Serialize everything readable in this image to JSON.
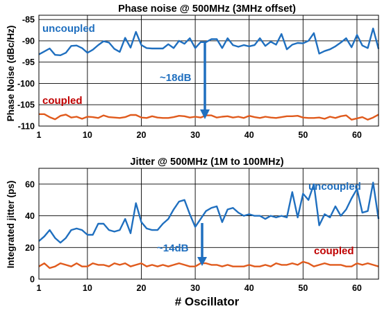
{
  "chart_data": [
    {
      "type": "line",
      "title": "Phase noise @ 500MHz (3MHz offset)",
      "xlabel": "",
      "ylabel": "Phase Noise (dBc/Hz)",
      "xlim": [
        1,
        64
      ],
      "ylim": [
        -110,
        -84
      ],
      "x_ticks": [
        1,
        10,
        20,
        30,
        40,
        50,
        60
      ],
      "y_ticks": [
        -110,
        -105,
        -100,
        -95,
        -90,
        -85
      ],
      "x_tick_labels": [
        "1",
        "10",
        "20",
        "30",
        "40",
        "50",
        "60"
      ],
      "y_tick_labels": [
        "-110",
        "-105",
        "-100",
        "-95",
        "-90",
        "-85"
      ],
      "grid": true,
      "x": [
        1,
        2,
        3,
        4,
        5,
        6,
        7,
        8,
        9,
        10,
        11,
        12,
        13,
        14,
        15,
        16,
        17,
        18,
        19,
        20,
        21,
        22,
        23,
        24,
        25,
        26,
        27,
        28,
        29,
        30,
        31,
        32,
        33,
        34,
        35,
        36,
        37,
        38,
        39,
        40,
        41,
        42,
        43,
        44,
        45,
        46,
        47,
        48,
        49,
        50,
        51,
        52,
        53,
        54,
        55,
        56,
        57,
        58,
        59,
        60,
        61,
        62,
        63,
        64
      ],
      "series": [
        {
          "name": "uncoupled",
          "color": "#1f6fbf",
          "values": [
            -93.2,
            -92.5,
            -91.8,
            -93.3,
            -93.4,
            -92.8,
            -91.2,
            -91.1,
            -91.7,
            -92.8,
            -92.1,
            -91.0,
            -90.1,
            -90.4,
            -91.9,
            -92.6,
            -89.3,
            -91.6,
            -87.9,
            -91.0,
            -91.7,
            -91.8,
            -91.8,
            -91.8,
            -90.8,
            -91.7,
            -90.0,
            -90.7,
            -89.4,
            -91.7,
            -90.3,
            -90.3,
            -89.6,
            -89.6,
            -91.7,
            -89.4,
            -91.0,
            -91.4,
            -91.0,
            -91.3,
            -91.0,
            -89.4,
            -91.2,
            -90.2,
            -90.9,
            -88.4,
            -92.0,
            -90.9,
            -90.5,
            -90.6,
            -90.0,
            -88.2,
            -93.0,
            -92.4,
            -92.0,
            -91.3,
            -90.4,
            -89.4,
            -91.5,
            -88.6,
            -91.1,
            -91.7,
            -87.1,
            -91.9
          ]
        },
        {
          "name": "coupled",
          "color": "#e05a1c",
          "values": [
            -107.2,
            -107.2,
            -107.9,
            -108.4,
            -107.6,
            -107.3,
            -108.0,
            -107.8,
            -108.3,
            -107.8,
            -107.9,
            -108.1,
            -107.5,
            -107.9,
            -108.0,
            -108.1,
            -107.9,
            -107.4,
            -107.4,
            -108.0,
            -108.1,
            -107.7,
            -108.0,
            -108.1,
            -108.1,
            -107.9,
            -107.6,
            -107.7,
            -108.0,
            -107.8,
            -108.0,
            -107.5,
            -107.5,
            -108.0,
            -107.8,
            -107.7,
            -108.0,
            -107.8,
            -108.1,
            -107.6,
            -107.9,
            -108.1,
            -107.8,
            -108.0,
            -108.1,
            -107.9,
            -107.7,
            -107.7,
            -107.6,
            -108.0,
            -108.1,
            -108.1,
            -108.0,
            -108.3,
            -107.8,
            -108.1,
            -107.7,
            -107.5,
            -108.5,
            -108.2,
            -107.9,
            -108.5,
            -108.0,
            -107.3
          ]
        }
      ],
      "annotations": [
        {
          "text": "uncoupled",
          "color": "#1f6fbf"
        },
        {
          "text": "coupled",
          "color": "#c00000"
        },
        {
          "text": "~18dB",
          "color": "#1f6fbf"
        }
      ]
    },
    {
      "type": "line",
      "title": "Jitter @ 500MHz (1M to 100MHz)",
      "xlabel": "# Oscillator",
      "ylabel": "Integrated jitter (ps)",
      "xlim": [
        1,
        64
      ],
      "ylim": [
        0,
        70
      ],
      "x_ticks": [
        1,
        10,
        20,
        30,
        40,
        50,
        60
      ],
      "y_ticks": [
        0,
        20,
        40,
        60
      ],
      "x_tick_labels": [
        "1",
        "10",
        "20",
        "30",
        "40",
        "50",
        "60"
      ],
      "y_tick_labels": [
        "0",
        "20",
        "40",
        "60"
      ],
      "grid": true,
      "x": [
        1,
        2,
        3,
        4,
        5,
        6,
        7,
        8,
        9,
        10,
        11,
        12,
        13,
        14,
        15,
        16,
        17,
        18,
        19,
        20,
        21,
        22,
        23,
        24,
        25,
        26,
        27,
        28,
        29,
        30,
        31,
        32,
        33,
        34,
        35,
        36,
        37,
        38,
        39,
        40,
        41,
        42,
        43,
        44,
        45,
        46,
        47,
        48,
        49,
        50,
        51,
        52,
        53,
        54,
        55,
        56,
        57,
        58,
        59,
        60,
        61,
        62,
        63,
        64
      ],
      "series": [
        {
          "name": "uncoupled",
          "color": "#1f6fbf",
          "values": [
            24,
            27,
            31,
            26,
            23,
            26,
            31,
            32,
            31,
            28,
            28,
            35,
            35,
            31,
            30,
            31,
            38,
            29,
            48,
            36,
            32,
            31,
            31,
            35,
            38,
            44,
            49,
            50,
            41,
            33,
            38,
            43,
            45,
            46,
            36,
            44,
            45,
            42,
            40,
            41,
            40,
            40,
            38,
            40,
            39,
            40,
            39,
            55,
            39,
            54,
            50,
            60,
            34,
            41,
            39,
            46,
            40,
            44,
            51,
            57,
            42,
            43,
            61,
            38
          ]
        },
        {
          "name": "coupled",
          "color": "#e05a1c",
          "values": [
            8,
            10,
            7,
            8,
            10,
            9,
            8,
            10,
            8,
            8,
            10,
            9,
            9,
            8,
            10,
            9,
            10,
            8,
            9,
            10,
            8,
            9,
            8,
            9,
            8,
            9,
            10,
            9,
            8,
            8,
            10,
            10,
            9,
            9,
            8,
            9,
            8,
            8,
            8,
            9,
            8,
            8,
            9,
            8,
            10,
            9,
            9,
            10,
            9,
            11,
            10,
            8,
            9,
            10,
            9,
            9,
            9,
            8,
            8,
            10,
            9,
            10,
            9,
            8
          ]
        }
      ],
      "annotations": [
        {
          "text": "uncoupled",
          "color": "#1f6fbf"
        },
        {
          "text": "coupled",
          "color": "#c00000"
        },
        {
          "text": "~14dB",
          "color": "#1f6fbf"
        }
      ]
    }
  ]
}
